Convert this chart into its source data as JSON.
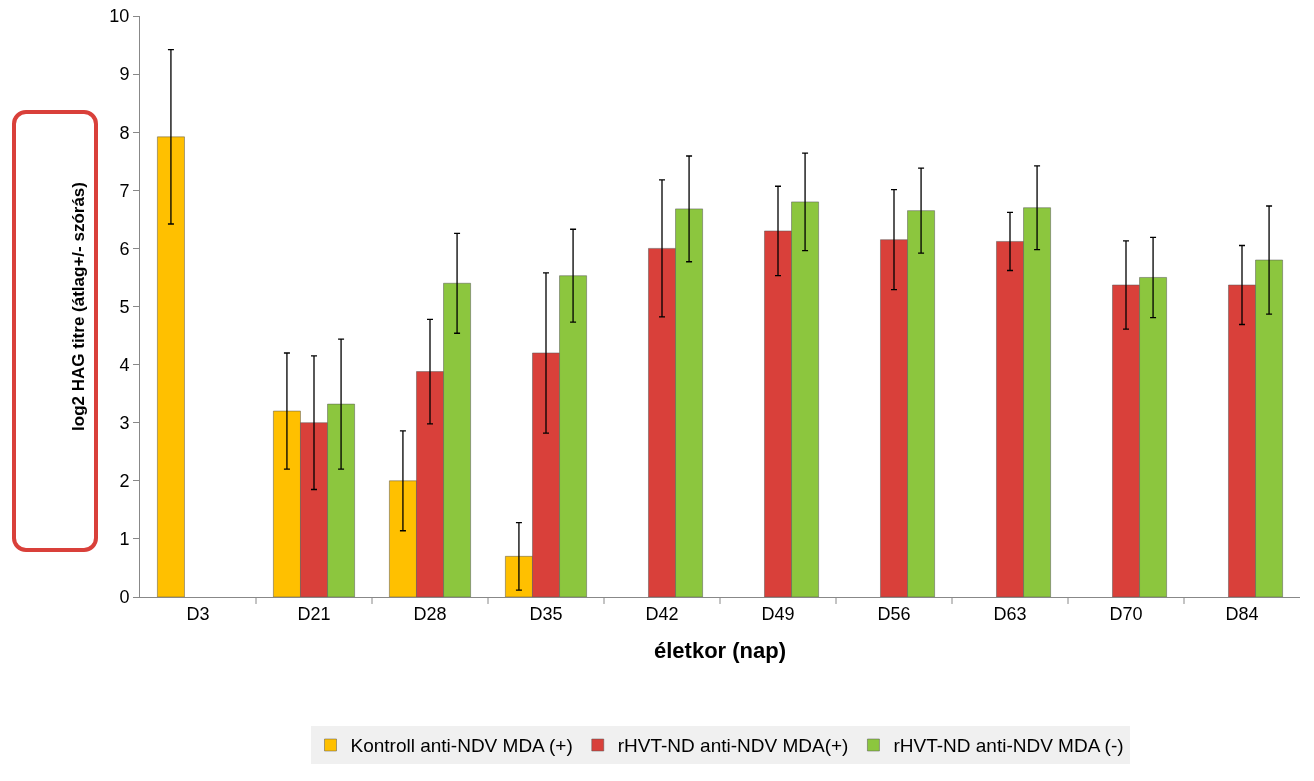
{
  "chart_data": {
    "type": "bar",
    "xlabel": "életkor (nap)",
    "ylabel": "log2 HAG titre (átlag+/- szórás)",
    "categories": [
      "D3",
      "D21",
      "D28",
      "D35",
      "D42",
      "D49",
      "D56",
      "D63",
      "D70",
      "D84"
    ],
    "series": [
      {
        "name": "Kontroll anti-NDV MDA (+)",
        "color": "#ffc000",
        "values": [
          7.92,
          3.2,
          2.0,
          0.7,
          null,
          null,
          null,
          null,
          null,
          null
        ],
        "errors": [
          1.5,
          1.0,
          0.86,
          0.58,
          null,
          null,
          null,
          null,
          null,
          null
        ]
      },
      {
        "name": "rHVT-ND anti-NDV MDA(+)",
        "color": "#d9403a",
        "values": [
          null,
          3.0,
          3.88,
          4.2,
          6.0,
          6.3,
          6.15,
          6.12,
          5.37,
          5.37
        ],
        "errors": [
          null,
          1.15,
          0.9,
          1.38,
          1.18,
          0.77,
          0.86,
          0.5,
          0.76,
          0.68
        ]
      },
      {
        "name": "rHVT-ND anti-NDV MDA (-)",
        "color": "#8cc63e",
        "values": [
          null,
          3.32,
          5.4,
          5.53,
          6.68,
          6.8,
          6.65,
          6.7,
          5.5,
          5.8
        ],
        "errors": [
          null,
          1.12,
          0.86,
          0.8,
          0.91,
          0.84,
          0.73,
          0.72,
          0.69,
          0.93
        ]
      }
    ],
    "ylim": [
      0,
      10
    ],
    "yticks": [
      0,
      1,
      2,
      3,
      4,
      5,
      6,
      7,
      8,
      9,
      10
    ],
    "grid": false,
    "legend": "bottom"
  }
}
